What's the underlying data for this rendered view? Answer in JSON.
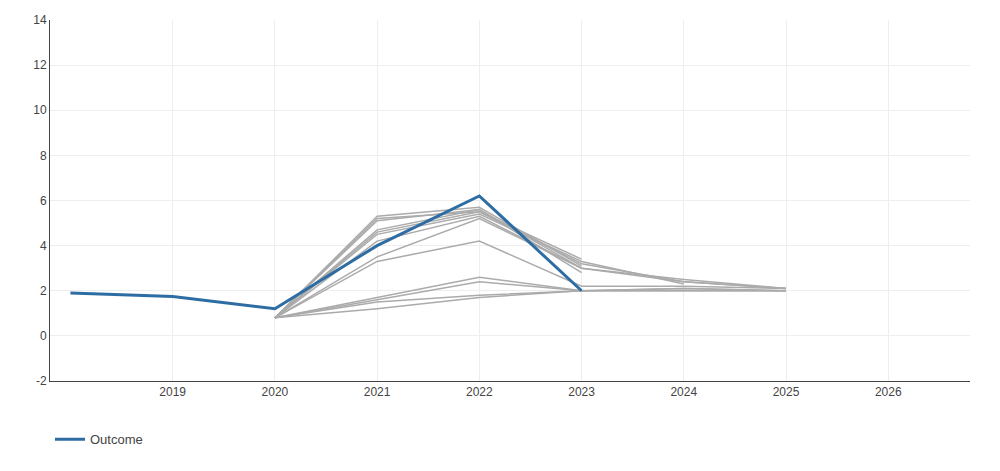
{
  "chart_data": {
    "type": "line",
    "series": [
      {
        "color": "#ABABAB",
        "x": [
          2020,
          2021,
          2022,
          2023,
          2024,
          2025
        ],
        "values": [
          0.8,
          1.2,
          1.7,
          2.0,
          2.0,
          2.0
        ]
      },
      {
        "color": "#ABABAB",
        "x": [
          2020,
          2021,
          2022,
          2023,
          2024,
          2025
        ],
        "values": [
          0.8,
          1.5,
          1.8,
          2.0,
          2.0,
          2.0
        ]
      },
      {
        "color": "#ABABAB",
        "x": [
          2020,
          2021,
          2022,
          2023,
          2024,
          2025
        ],
        "values": [
          0.8,
          1.6,
          2.4,
          2.0,
          2.1,
          2.0
        ]
      },
      {
        "color": "#ABABAB",
        "x": [
          2020,
          2021,
          2022,
          2023,
          2024,
          2025
        ],
        "values": [
          0.8,
          1.7,
          2.6,
          2.0,
          2.1,
          2.0
        ]
      },
      {
        "color": "#ABABAB",
        "x": [
          2020,
          2021,
          2022,
          2023,
          2024,
          2025
        ],
        "values": [
          0.8,
          3.3,
          4.2,
          2.2,
          2.2,
          2.1
        ]
      },
      {
        "color": "#ABABAB",
        "x": [
          2020,
          2021,
          2022,
          2023,
          2024,
          2025
        ],
        "values": [
          0.8,
          3.5,
          5.2,
          3.0,
          2.4,
          2.1
        ]
      },
      {
        "color": "#ABABAB",
        "x": [
          2020,
          2021,
          2022,
          2023,
          2024,
          2025
        ],
        "values": [
          0.8,
          4.2,
          5.3,
          3.0,
          2.5,
          2.1
        ]
      },
      {
        "color": "#ABABAB",
        "x": [
          2020,
          2021,
          2022,
          2023,
          2024,
          2025
        ],
        "values": [
          0.8,
          5.2,
          5.5,
          3.2,
          2.4,
          2.1
        ]
      },
      {
        "color": "#ABABAB",
        "x": [
          2020,
          2021,
          2022,
          2023,
          2024
        ],
        "values": [
          0.8,
          4.5,
          5.4,
          3.3,
          2.3
        ]
      },
      {
        "color": "#ABABAB",
        "x": [
          2020,
          2021,
          2022,
          2023
        ],
        "values": [
          0.8,
          4.6,
          5.5,
          3.4
        ]
      },
      {
        "color": "#ABABAB",
        "x": [
          2020,
          2021,
          2022,
          2023
        ],
        "values": [
          0.8,
          4.7,
          5.6,
          2.8
        ]
      },
      {
        "color": "#ABABAB",
        "x": [
          2020,
          2021,
          2022,
          2023
        ],
        "values": [
          0.8,
          5.1,
          5.6,
          3.0
        ]
      },
      {
        "color": "#ABABAB",
        "x": [
          2020,
          2021,
          2022,
          2023
        ],
        "values": [
          0.8,
          5.3,
          5.7,
          3.1
        ]
      },
      {
        "name": "Outcome",
        "color": "#2E6DA4",
        "x": [
          2018,
          2019,
          2020,
          2021,
          2022,
          2023
        ],
        "values": [
          1.9,
          1.75,
          1.2,
          4.0,
          6.2,
          2.0
        ]
      }
    ],
    "xlim": [
      2017.8,
      2026.8
    ],
    "xticks": [
      2019,
      2020,
      2021,
      2022,
      2023,
      2024,
      2025,
      2026
    ],
    "ylim": [
      -2,
      14
    ],
    "yticks": [
      -2,
      0,
      2,
      4,
      6,
      8,
      10,
      12,
      14
    ],
    "grid": true,
    "legend": "bottom"
  }
}
